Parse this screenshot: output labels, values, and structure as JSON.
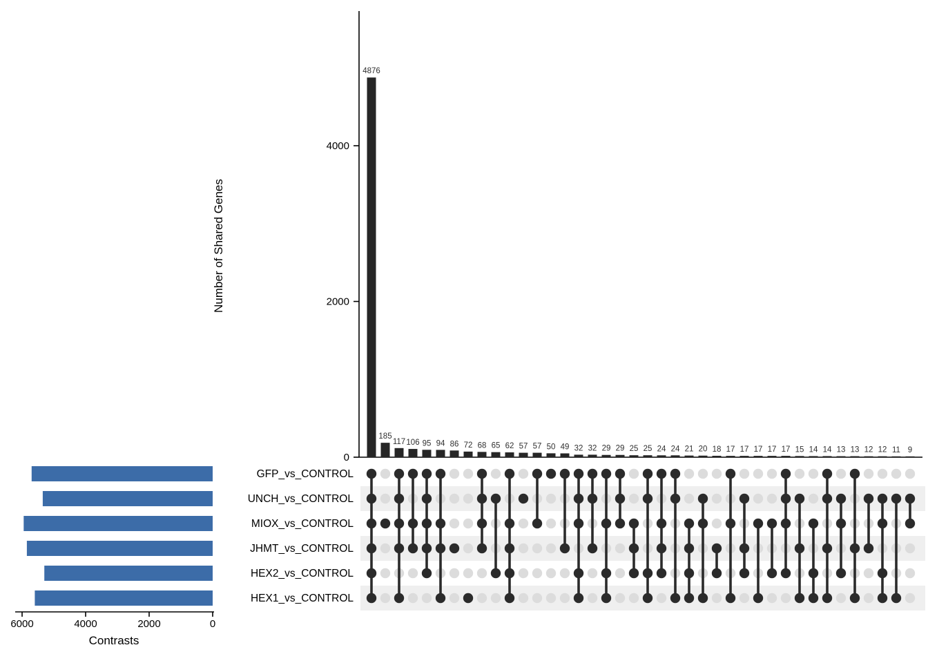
{
  "labels": {
    "y_axis": "Number of Shared Genes",
    "set_size_axis": "Contrasts"
  },
  "colors": {
    "intersection_bar": "#262626",
    "set_size_bar": "#3c6ca8",
    "dot_filled": "#2b2b2b",
    "dot_empty": "#dcdcdc",
    "row_band": "#efefef",
    "axis": "#000000",
    "value_label": "#303030"
  },
  "chart_data": {
    "type": "bar",
    "subtype": "upset",
    "title": "",
    "intersection_axis": {
      "label": "Number of Shared Genes",
      "ticks": [
        0,
        2000,
        4000
      ],
      "lim": [
        0,
        5400
      ],
      "grid": false
    },
    "set_axis": {
      "label": "Contrasts",
      "ticks": [
        6000,
        4000,
        2000,
        0
      ],
      "lim": [
        0,
        6000
      ],
      "grid": false
    },
    "sets": [
      {
        "name": "GFP_vs_CONTROL",
        "size": 5700
      },
      {
        "name": "UNCH_vs_CONTROL",
        "size": 5350
      },
      {
        "name": "MIOX_vs_CONTROL",
        "size": 5950
      },
      {
        "name": "JHMT_vs_CONTROL",
        "size": 5850
      },
      {
        "name": "HEX2_vs_CONTROL",
        "size": 5300
      },
      {
        "name": "HEX1_vs_CONTROL",
        "size": 5600
      }
    ],
    "intersections": [
      {
        "size": 4876,
        "sets": [
          0,
          1,
          2,
          3,
          4,
          5
        ]
      },
      {
        "size": 185,
        "sets": [
          2
        ]
      },
      {
        "size": 117,
        "sets": [
          0,
          1,
          2,
          3,
          5
        ]
      },
      {
        "size": 106,
        "sets": [
          0,
          2,
          3
        ]
      },
      {
        "size": 95,
        "sets": [
          0,
          1,
          2,
          3,
          4
        ]
      },
      {
        "size": 94,
        "sets": [
          0,
          2,
          3,
          5
        ]
      },
      {
        "size": 86,
        "sets": [
          3
        ]
      },
      {
        "size": 72,
        "sets": [
          5
        ]
      },
      {
        "size": 68,
        "sets": [
          0,
          1,
          2,
          3
        ]
      },
      {
        "size": 65,
        "sets": [
          1,
          4
        ]
      },
      {
        "size": 62,
        "sets": [
          0,
          2,
          3,
          4,
          5
        ]
      },
      {
        "size": 57,
        "sets": [
          1
        ]
      },
      {
        "size": 57,
        "sets": [
          0,
          2
        ]
      },
      {
        "size": 50,
        "sets": [
          0
        ]
      },
      {
        "size": 49,
        "sets": [
          0,
          3
        ]
      },
      {
        "size": 32,
        "sets": [
          0,
          1,
          2,
          4,
          5
        ]
      },
      {
        "size": 32,
        "sets": [
          0,
          1,
          3
        ]
      },
      {
        "size": 29,
        "sets": [
          0,
          2,
          4,
          5
        ]
      },
      {
        "size": 29,
        "sets": [
          0,
          1,
          2
        ]
      },
      {
        "size": 25,
        "sets": [
          2,
          3,
          4
        ]
      },
      {
        "size": 25,
        "sets": [
          0,
          1,
          4,
          5
        ]
      },
      {
        "size": 24,
        "sets": [
          0,
          2,
          3,
          4
        ]
      },
      {
        "size": 24,
        "sets": [
          0,
          1,
          5
        ]
      },
      {
        "size": 21,
        "sets": [
          2,
          3,
          4,
          5
        ]
      },
      {
        "size": 20,
        "sets": [
          1,
          2,
          5
        ]
      },
      {
        "size": 18,
        "sets": [
          3,
          4
        ]
      },
      {
        "size": 17,
        "sets": [
          0,
          2,
          5
        ]
      },
      {
        "size": 17,
        "sets": [
          1,
          3,
          4
        ]
      },
      {
        "size": 17,
        "sets": [
          2,
          5
        ]
      },
      {
        "size": 17,
        "sets": [
          2,
          4
        ]
      },
      {
        "size": 17,
        "sets": [
          0,
          1,
          2,
          4
        ]
      },
      {
        "size": 15,
        "sets": [
          1,
          3,
          5
        ]
      },
      {
        "size": 14,
        "sets": [
          2,
          4,
          5
        ]
      },
      {
        "size": 14,
        "sets": [
          0,
          1,
          3,
          5
        ]
      },
      {
        "size": 13,
        "sets": [
          1,
          2,
          4
        ]
      },
      {
        "size": 13,
        "sets": [
          0,
          3,
          5
        ]
      },
      {
        "size": 12,
        "sets": [
          1,
          3
        ]
      },
      {
        "size": 12,
        "sets": [
          1,
          2,
          4,
          5
        ]
      },
      {
        "size": 11,
        "sets": [
          1,
          5
        ]
      },
      {
        "size": 9,
        "sets": [
          1,
          2
        ]
      }
    ]
  }
}
